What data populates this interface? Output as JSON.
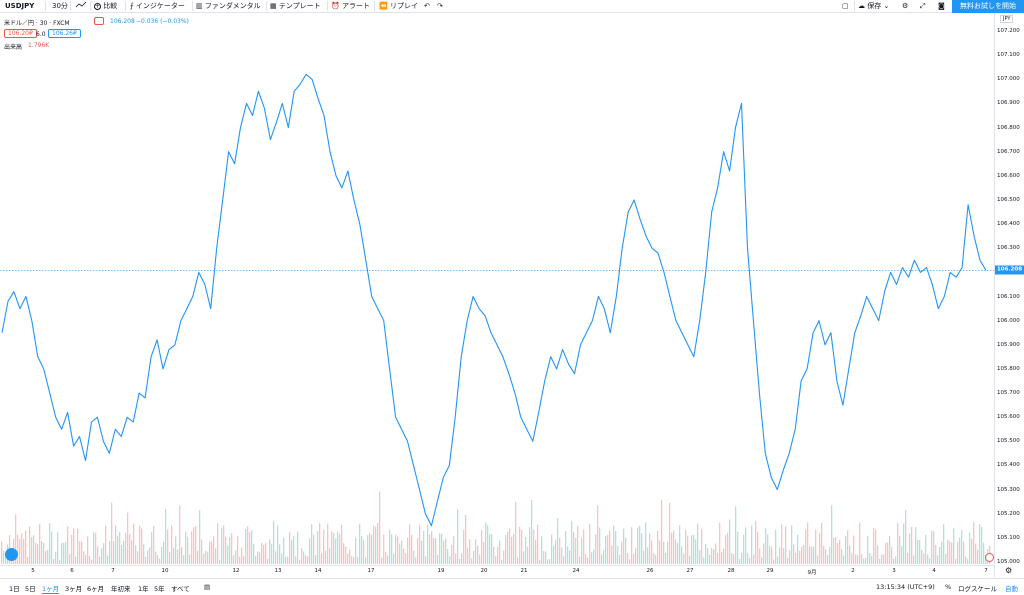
{
  "toolbar": {
    "symbol": "USDJPY",
    "interval": "30分",
    "compare": "比較",
    "indicators": "インジケーター",
    "fundamentals": "ファンダメンタル",
    "templates": "テンプレート",
    "alert": "アラート",
    "replay": "リプレイ",
    "save": "保存",
    "cta": "無料お試しを開始"
  },
  "legend": {
    "title": "米ドル／円 · 30 · FXCM",
    "price": "106.208",
    "change": "−0.036 (−0.03%)",
    "bid": "106.20₽",
    "spread": "6.0",
    "ask": "106.26₽",
    "volume_label": "出来高",
    "volume_value": "1.796K"
  },
  "price_axis": {
    "currency": "JPY",
    "current": "106.208",
    "ticks": [
      "107.200",
      "107.100",
      "107.000",
      "106.900",
      "106.800",
      "106.700",
      "106.600",
      "106.500",
      "106.400",
      "106.300",
      "106.200",
      "106.100",
      "106.000",
      "105.900",
      "105.800",
      "105.700",
      "105.600",
      "105.500",
      "105.400",
      "105.300",
      "105.200",
      "105.100",
      "105.000"
    ]
  },
  "time_axis": [
    "5",
    "6",
    "7",
    "10",
    "12",
    "13",
    "14",
    "17",
    "19",
    "20",
    "21",
    "24",
    "26",
    "27",
    "28",
    "29",
    "9月",
    "2",
    "3",
    "4",
    "7"
  ],
  "bottom": {
    "ranges": [
      "1日",
      "5日",
      "1ヶ月",
      "3ヶ月",
      "6ヶ月",
      "年初来",
      "1年",
      "5年",
      "すべて"
    ],
    "active_range": "1ヶ月",
    "time": "13:15:34 (UTC+9)",
    "percent": "%",
    "log": "ログスケール",
    "auto": "自動"
  },
  "colors": {
    "line": "#2196f3",
    "vol_up": "#26a69a",
    "vol_down": "#ef5350",
    "accent": "#2196f3"
  },
  "chart_data": {
    "type": "line",
    "title": "米ドル／円 · 30 · FXCM",
    "xlabel": "",
    "ylabel": "",
    "ylim": [
      105.0,
      107.2
    ],
    "x_ticks": [
      "5",
      "6",
      "7",
      "10",
      "12",
      "13",
      "14",
      "17",
      "19",
      "20",
      "21",
      "24",
      "26",
      "27",
      "28",
      "29",
      "9月",
      "2",
      "3",
      "4",
      "7"
    ],
    "series": [
      {
        "values": [
          105.95,
          106.08,
          106.12,
          106.05,
          106.1,
          106.0,
          105.85,
          105.8,
          105.7,
          105.6,
          105.55,
          105.62,
          105.48,
          105.52,
          105.42,
          105.58,
          105.6,
          105.5,
          105.45,
          105.55,
          105.52,
          105.6,
          105.58,
          105.7,
          105.68,
          105.85,
          105.92,
          105.8,
          105.88,
          105.9,
          106.0,
          106.05,
          106.1,
          106.2,
          106.15,
          106.05,
          106.3,
          106.5,
          106.7,
          106.65,
          106.8,
          106.9,
          106.85,
          106.95,
          106.88,
          106.75,
          106.82,
          106.9,
          106.8,
          106.95,
          106.98,
          107.02,
          107.0,
          106.92,
          106.85,
          106.7,
          106.6,
          106.55,
          106.62,
          106.5,
          106.4,
          106.25,
          106.1,
          106.05,
          106.0,
          105.8,
          105.6,
          105.55,
          105.5,
          105.4,
          105.3,
          105.2,
          105.15,
          105.25,
          105.35,
          105.4,
          105.6,
          105.85,
          106.0,
          106.1,
          106.05,
          106.02,
          105.95,
          105.9,
          105.85,
          105.78,
          105.7,
          105.6,
          105.55,
          105.5,
          105.62,
          105.75,
          105.85,
          105.8,
          105.88,
          105.82,
          105.78,
          105.9,
          105.95,
          106.0,
          106.1,
          106.05,
          105.95,
          106.1,
          106.3,
          106.45,
          106.5,
          106.42,
          106.35,
          106.3,
          106.28,
          106.2,
          106.1,
          106.0,
          105.95,
          105.9,
          105.85,
          106.0,
          106.2,
          106.45,
          106.55,
          106.7,
          106.62,
          106.8,
          106.9,
          106.3,
          106.0,
          105.7,
          105.45,
          105.35,
          105.3,
          105.38,
          105.45,
          105.55,
          105.75,
          105.8,
          105.95,
          106.0,
          105.9,
          105.95,
          105.75,
          105.65,
          105.8,
          105.95,
          106.02,
          106.1,
          106.05,
          106.0,
          106.12,
          106.2,
          106.15,
          106.22,
          106.18,
          106.25,
          106.2,
          106.22,
          106.15,
          106.05,
          106.1,
          106.2,
          106.18,
          106.22,
          106.48,
          106.35,
          106.25,
          106.208
        ]
      }
    ]
  }
}
